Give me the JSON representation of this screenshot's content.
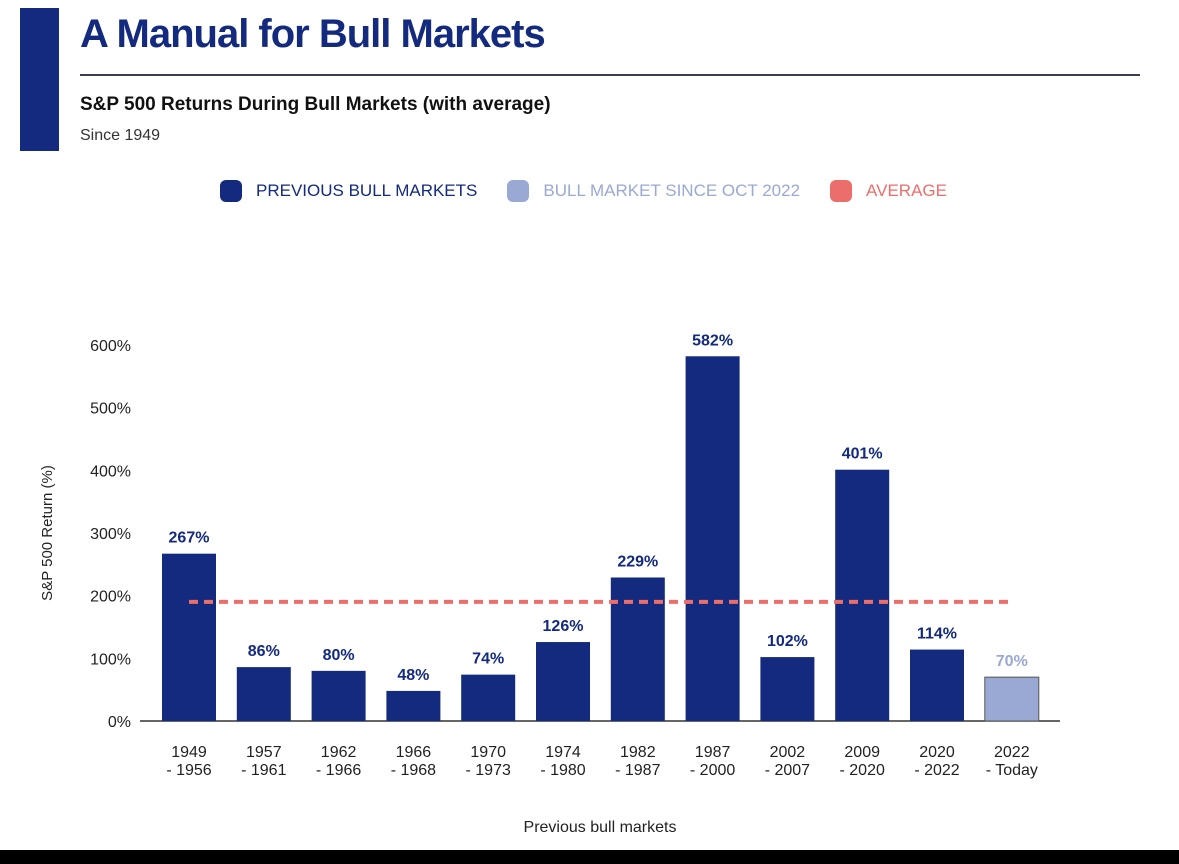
{
  "header": {
    "title": "A Manual for Bull Markets",
    "subtitle": "S&P 500 Returns During Bull Markets (with average)",
    "since": "Since 1949"
  },
  "legend": {
    "items": [
      {
        "label": "PREVIOUS BULL MARKETS",
        "color": "#132a7e"
      },
      {
        "label": "BULL MARKET SINCE OCT 2022",
        "color": "#9aa8d4"
      },
      {
        "label": "AVERAGE",
        "color": "#ec6e6b"
      }
    ]
  },
  "chart_data": {
    "type": "bar",
    "title": "S&P 500 Returns During Bull Markets (with average)",
    "xlabel": "Previous bull markets",
    "ylabel": "S&P 500 Return (%)",
    "ylim": [
      0,
      600
    ],
    "yticks": [
      "0%",
      "100%",
      "200%",
      "300%",
      "400%",
      "500%",
      "600%"
    ],
    "ytick_values": [
      0,
      100,
      200,
      300,
      400,
      500,
      600
    ],
    "grid": false,
    "legend_position": "top",
    "categories": [
      [
        "1949",
        "- 1956"
      ],
      [
        "1957",
        "- 1961"
      ],
      [
        "1962",
        "- 1966"
      ],
      [
        "1966",
        "- 1968"
      ],
      [
        "1970",
        "- 1973"
      ],
      [
        "1974",
        "- 1980"
      ],
      [
        "1982",
        "- 1987"
      ],
      [
        "1987",
        "- 2000"
      ],
      [
        "2002",
        "- 2007"
      ],
      [
        "2009",
        "- 2020"
      ],
      [
        "2020",
        "- 2022"
      ],
      [
        "2022",
        "- Today"
      ]
    ],
    "values": [
      267,
      86,
      80,
      48,
      74,
      126,
      229,
      582,
      102,
      401,
      114,
      70
    ],
    "data_labels": [
      "267%",
      "86%",
      "80%",
      "48%",
      "74%",
      "126%",
      "229%",
      "582%",
      "102%",
      "401%",
      "114%",
      "70%"
    ],
    "current_index": 11,
    "average": 190,
    "colors": {
      "previous": "#132a7e",
      "current": "#9aa8d4",
      "current_label": "#9aa8d4",
      "average": "#ec6e6b"
    }
  }
}
